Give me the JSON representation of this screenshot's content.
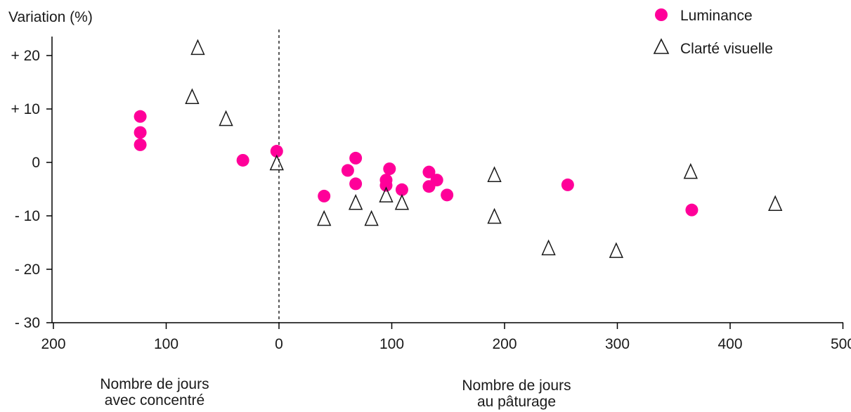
{
  "chart_data": {
    "type": "scatter",
    "ylabel": "Variation (%)",
    "xlabel_left": [
      "Nombre de jours",
      "avec concentré"
    ],
    "xlabel_right": [
      "Nombre de jours",
      "au pâturage"
    ],
    "x_ticks": [
      {
        "value": -200,
        "label": "200"
      },
      {
        "value": -100,
        "label": "100"
      },
      {
        "value": 0,
        "label": "0"
      },
      {
        "value": 100,
        "label": "100"
      },
      {
        "value": 200,
        "label": "200"
      },
      {
        "value": 300,
        "label": "300"
      },
      {
        "value": 400,
        "label": "400"
      },
      {
        "value": 500,
        "label": "500"
      }
    ],
    "y_ticks": [
      {
        "value": 20,
        "label": "+ 20"
      },
      {
        "value": 10,
        "label": "+ 10"
      },
      {
        "value": 0,
        "label": "0"
      },
      {
        "value": -10,
        "label": "- 10"
      },
      {
        "value": -20,
        "label": "- 20"
      },
      {
        "value": -30,
        "label": "- 30"
      }
    ],
    "xlim": [
      -200,
      500
    ],
    "ylim": [
      -30,
      25
    ],
    "reference_line_x": 0,
    "legend_position": "top-right",
    "grid": false,
    "series": [
      {
        "name": "Luminance",
        "marker": "circle",
        "color": "#ff0099",
        "points": [
          {
            "x": -123,
            "y": 8.6
          },
          {
            "x": -123,
            "y": 5.6
          },
          {
            "x": -123,
            "y": 3.3
          },
          {
            "x": -32,
            "y": 0.4
          },
          {
            "x": -2,
            "y": 2.1
          },
          {
            "x": 40,
            "y": -6.3
          },
          {
            "x": 61,
            "y": -1.5
          },
          {
            "x": 68,
            "y": 0.8
          },
          {
            "x": 68,
            "y": -4.0
          },
          {
            "x": 95,
            "y": -3.3
          },
          {
            "x": 95,
            "y": -4.3
          },
          {
            "x": 98,
            "y": -1.2
          },
          {
            "x": 109,
            "y": -5.1
          },
          {
            "x": 133,
            "y": -1.8
          },
          {
            "x": 133,
            "y": -4.5
          },
          {
            "x": 140,
            "y": -3.3
          },
          {
            "x": 149,
            "y": -6.1
          },
          {
            "x": 256,
            "y": -4.2
          },
          {
            "x": 366,
            "y": -8.9
          }
        ]
      },
      {
        "name": "Clarté visuelle",
        "marker": "triangle",
        "color": "#1a1a1a",
        "points": [
          {
            "x": -72,
            "y": 21.4
          },
          {
            "x": -77,
            "y": 12.2
          },
          {
            "x": -47,
            "y": 8.1
          },
          {
            "x": -2,
            "y": -0.2
          },
          {
            "x": 40,
            "y": -10.6
          },
          {
            "x": 68,
            "y": -7.6
          },
          {
            "x": 82,
            "y": -10.6
          },
          {
            "x": 95,
            "y": -6.2
          },
          {
            "x": 109,
            "y": -7.6
          },
          {
            "x": 191,
            "y": -2.4
          },
          {
            "x": 191,
            "y": -10.2
          },
          {
            "x": 239,
            "y": -16.1
          },
          {
            "x": 299,
            "y": -16.6
          },
          {
            "x": 365,
            "y": -1.8
          },
          {
            "x": 440,
            "y": -7.8
          }
        ]
      }
    ]
  }
}
